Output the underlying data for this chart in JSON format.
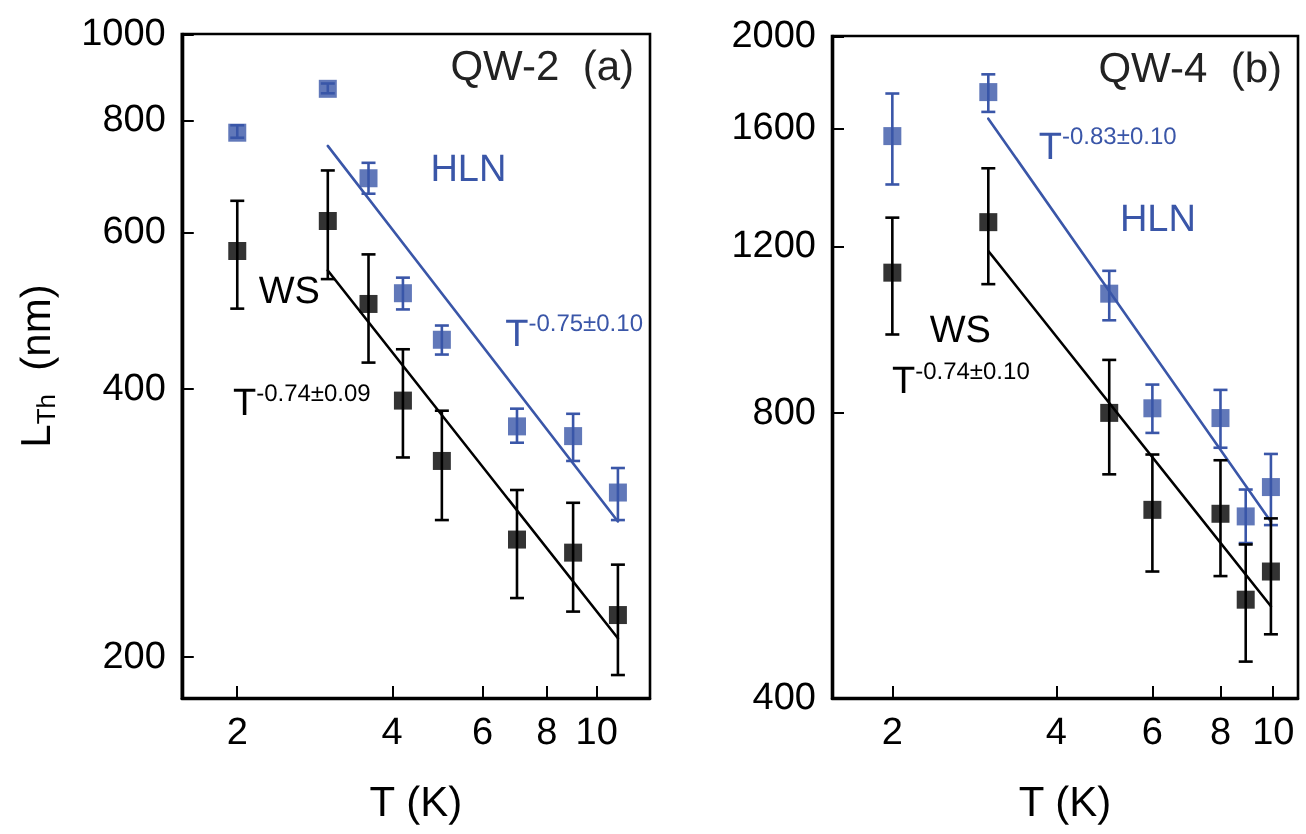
{
  "chart_data": [
    {
      "type": "scatter",
      "xlabel": "T (K)",
      "ylabel": "L$_{Th}$  (nm)",
      "log": "xy",
      "grid": false,
      "marker": "square",
      "xlim": [
        1.56,
        12.7
      ],
      "ylim": [
        180,
        1000
      ],
      "xticks": [
        2,
        4,
        6,
        8,
        10
      ],
      "yticks": [
        200,
        400,
        600,
        800,
        1000
      ],
      "annotations": [
        "QW-2  (a)"
      ],
      "series": [
        {
          "name": "HLN",
          "color": "#3a56a8",
          "x": [
            2,
            3,
            3.6,
            4.2,
            5,
            7,
            9,
            11
          ],
          "values": [
            775,
            868,
            689,
            512,
            454,
            363,
            354,
            306
          ],
          "errors": [
            [
              765,
              790
            ],
            [
              858,
              880
            ],
            [
              662,
              717
            ],
            [
              491,
              533
            ],
            [
              437,
              471
            ],
            [
              348,
              380
            ],
            [
              332,
              375
            ],
            [
              285,
              326
            ]
          ]
        },
        {
          "name": "WS",
          "color": "#000000",
          "x": [
            2,
            3,
            3.6,
            4.2,
            5,
            7,
            9,
            11
          ],
          "values": [
            571,
            617,
            498,
            388,
            332,
            271,
            262,
            223
          ],
          "errors": [
            [
              492,
              650
            ],
            [
              531,
              703
            ],
            [
              428,
              566
            ],
            [
              335,
              443
            ],
            [
              285,
              378
            ],
            [
              233,
              308
            ],
            [
              225,
              298
            ],
            [
              191,
              254
            ]
          ]
        },
        {
          "name": "T$^{-0.75±0.10}$",
          "type": "line",
          "marker": "none",
          "color": "#3a56a8",
          "x": [
            3,
            11
          ],
          "values": [
            749,
            284
          ]
        },
        {
          "name": "T$^{-0.74±0.09}$",
          "type": "line",
          "marker": "none",
          "color": "#000000",
          "x": [
            3,
            11
          ],
          "values": [
            543,
            210
          ]
        }
      ]
    },
    {
      "type": "scatter",
      "xlabel": "T (K)",
      "log": "xy",
      "grid": false,
      "marker": "square",
      "xlim": [
        1.55,
        11.1
      ],
      "ylim": [
        400,
        2000
      ],
      "xticks": [
        2,
        4,
        6,
        8,
        10
      ],
      "yticks": [
        400,
        800,
        1200,
        1600,
        2000
      ],
      "annotations": [
        "QW-4  (b)"
      ],
      "series": [
        {
          "name": "HLN",
          "color": "#3a56a8",
          "x": [
            2,
            3,
            5,
            6,
            8,
            8.9,
            9.9
          ],
          "values": [
            1568,
            1745,
            1069,
            809,
            790,
            622,
            668
          ],
          "errors": [
            [
              1394,
              1739
            ],
            [
              1663,
              1822
            ],
            [
              1002,
              1130
            ],
            [
              762,
              857
            ],
            [
              735,
              846
            ],
            [
              583,
              664
            ],
            [
              609,
              724
            ]
          ]
        },
        {
          "name": "WS",
          "color": "#000000",
          "x": [
            2,
            3,
            5,
            6,
            8,
            8.9,
            9.9
          ],
          "values": [
            1125,
            1272,
            800,
            632,
            626,
            508,
            544
          ],
          "errors": [
            [
              968,
              1286
            ],
            [
              1094,
              1450
            ],
            [
              689,
              910
            ],
            [
              544,
              723
            ],
            [
              538,
              713
            ],
            [
              437,
              581
            ],
            [
              467,
              619
            ]
          ]
        },
        {
          "name": "T$^{-0.83±0.10}$",
          "type": "line",
          "marker": "none",
          "color": "#3a56a8",
          "x": [
            3,
            9.9
          ],
          "values": [
            1636,
            614
          ]
        },
        {
          "name": "T$^{-0.74±0.10}$",
          "type": "line",
          "marker": "none",
          "color": "#000000",
          "x": [
            3,
            9.9
          ],
          "values": [
            1186,
            500
          ]
        }
      ]
    }
  ]
}
